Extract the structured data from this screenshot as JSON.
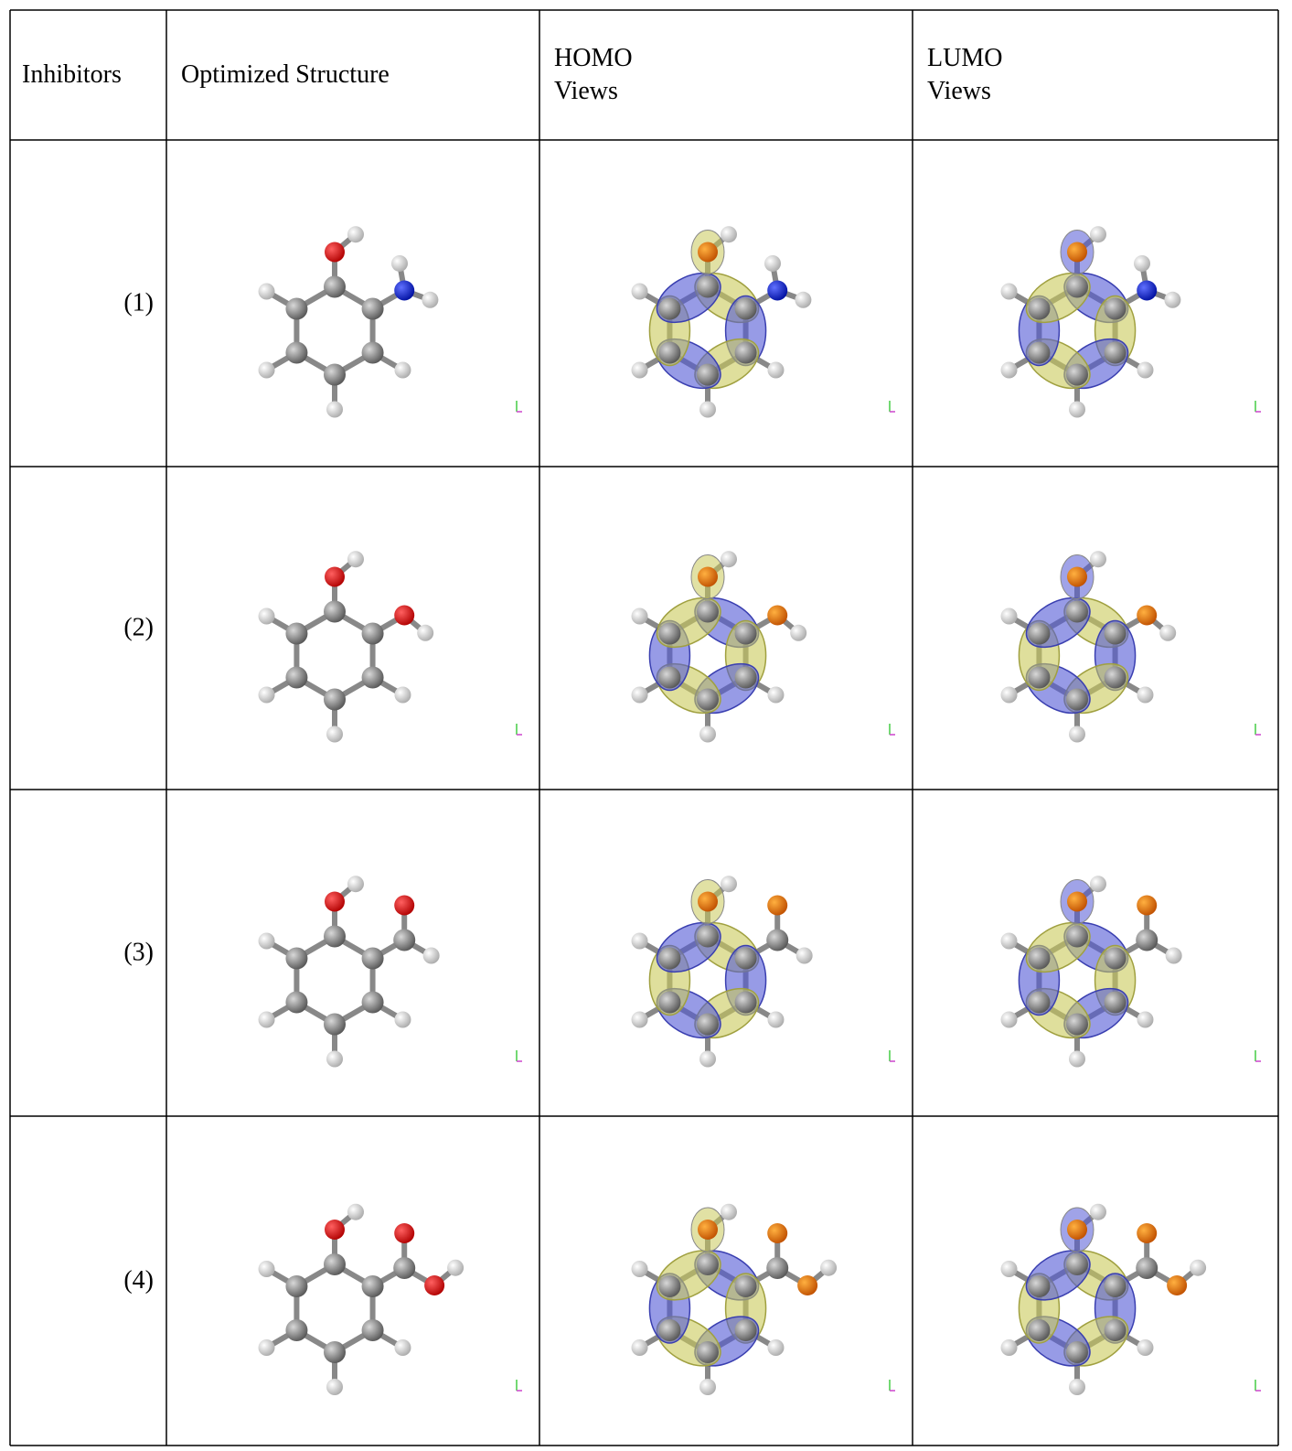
{
  "table": {
    "header": [
      [
        "Inhibitors"
      ],
      [
        "Optimized Structure"
      ],
      [
        "HOMO",
        "Views"
      ],
      [
        "LUMO",
        "Views"
      ]
    ],
    "rows": [
      "(1)",
      "(2)",
      "(3)",
      "(4)"
    ]
  }
}
